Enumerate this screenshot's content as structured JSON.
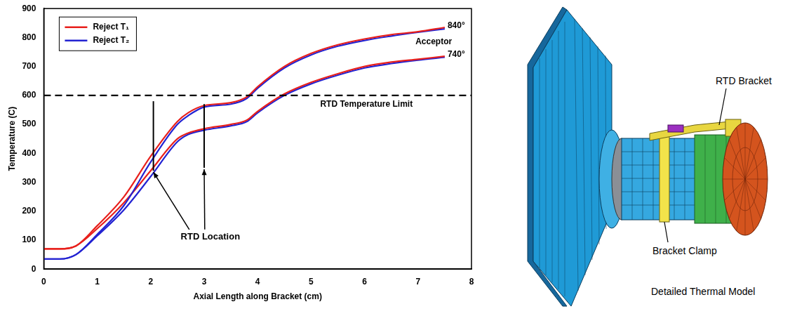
{
  "chart_data": {
    "type": "line",
    "x_label": "Axial Length along Bracket (cm)",
    "y_label": "Temperature (C)",
    "x": [
      0,
      0.3,
      0.6,
      1,
      1.5,
      2,
      2.5,
      2.7,
      3,
      3.5,
      3.8,
      4,
      4.5,
      5,
      5.5,
      6,
      6.5,
      7,
      7.5
    ],
    "series": [
      {
        "name": "Reject T₁",
        "color": "#e8201c",
        "values": [
          70,
          70,
          80,
          150,
          250,
          390,
          510,
          540,
          565,
          575,
          595,
          630,
          700,
          745,
          775,
          795,
          810,
          820,
          835
        ]
      },
      {
        "name": "Reject T₂",
        "color": "#2323d2",
        "values": [
          35,
          35,
          50,
          120,
          220,
          370,
          500,
          530,
          560,
          570,
          590,
          625,
          695,
          740,
          770,
          790,
          805,
          818,
          830
        ]
      },
      {
        "name": "Reject T₁",
        "color": "#e8201c",
        "values": [
          70,
          70,
          80,
          140,
          230,
          340,
          450,
          470,
          485,
          500,
          515,
          545,
          605,
          645,
          675,
          700,
          715,
          725,
          735
        ]
      },
      {
        "name": "Reject T₂",
        "color": "#2323d2",
        "values": [
          35,
          35,
          50,
          115,
          205,
          320,
          440,
          465,
          480,
          495,
          510,
          540,
          600,
          640,
          670,
          695,
          710,
          722,
          732
        ]
      }
    ],
    "xlim": [
      0,
      8
    ],
    "xticks": [
      0,
      1,
      2,
      3,
      4,
      5,
      6,
      7,
      8
    ],
    "ylim": [
      0,
      900
    ],
    "yticks": [
      0,
      100,
      200,
      300,
      400,
      500,
      600,
      700,
      800,
      900
    ],
    "grid": false,
    "legend": "upper left",
    "limit": {
      "value": 600,
      "label": "RTD Temperature Limit",
      "line_style": "dashed"
    },
    "rtd_location": {
      "label": "RTD Location",
      "lines": [
        {
          "x": 2.05,
          "y": [
            340,
            580
          ]
        },
        {
          "x": 3.0,
          "y": [
            350,
            570
          ]
        }
      ]
    },
    "annotations": [
      {
        "text": "840°",
        "x": 7.5,
        "y": 840
      },
      {
        "text": "Acceptor",
        "x": 6.9,
        "y": 785
      },
      {
        "text": "740°",
        "x": 7.5,
        "y": 740
      }
    ]
  },
  "diagram": {
    "title": "Detailed Thermal Model",
    "labels": [
      "RTD Bracket",
      "Bracket Clamp"
    ]
  }
}
